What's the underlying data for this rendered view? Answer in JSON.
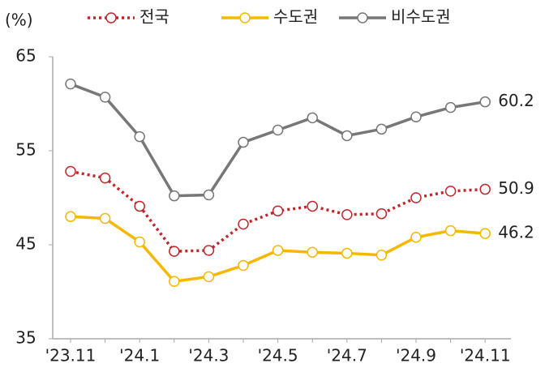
{
  "chart_data": {
    "type": "line",
    "y_label": "(%)",
    "categories": [
      "'23.11",
      null,
      "'24.1",
      null,
      "'24.3",
      null,
      "'24.5",
      null,
      "'24.7",
      null,
      "'24.9",
      null,
      "'24.11"
    ],
    "series": [
      {
        "name": "전국",
        "color": "#c0262c",
        "dash": true,
        "values": [
          52.8,
          52.1,
          49.1,
          44.3,
          44.4,
          47.2,
          48.6,
          49.1,
          48.2,
          48.3,
          50.0,
          50.7,
          50.9
        ]
      },
      {
        "name": "수도권",
        "color": "#f5b800",
        "dash": false,
        "values": [
          48.0,
          47.8,
          45.3,
          41.1,
          41.6,
          42.8,
          44.4,
          44.2,
          44.1,
          43.9,
          45.8,
          46.5,
          46.2
        ]
      },
      {
        "name": "비수도권",
        "color": "#777777",
        "dash": false,
        "values": [
          62.1,
          60.7,
          56.5,
          50.2,
          50.3,
          55.9,
          57.2,
          58.5,
          56.6,
          57.3,
          58.6,
          59.6,
          60.2
        ]
      }
    ],
    "ylim": [
      35,
      65
    ],
    "yticks": [
      35,
      45,
      55,
      65
    ]
  }
}
